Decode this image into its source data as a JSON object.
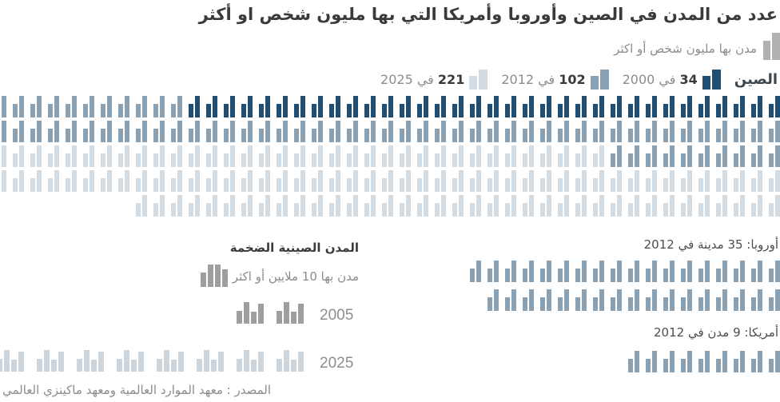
{
  "title": "عدد من المدن في الصين وأوروبا وأمريكا التي بها مليون شخص او أكثر",
  "legend_million": "مدن بها مليون شخص أو اكثر",
  "china": {
    "label": "الصين",
    "milestones": [
      {
        "count": "34",
        "year": "في 2000",
        "color": "dark"
      },
      {
        "count": "102",
        "year": "في 2012",
        "color": "medium"
      },
      {
        "count": "221",
        "year": "في 2025",
        "color": "light"
      }
    ],
    "grid": {
      "dark": 34,
      "medium": 68,
      "light": 119,
      "row_capacity": 46
    }
  },
  "europe": {
    "header": "أوروبا: 35 مدينة في 2012",
    "rows": [
      18,
      17
    ],
    "color": "medium"
  },
  "america": {
    "header": "أمريكا: 9 مدن في 2012",
    "rows": [
      9
    ],
    "color": "medium"
  },
  "mega": {
    "title": "المدن الصينية الضخمة",
    "legend": "مدن بها 10 ملايين أو اكثر",
    "rows": [
      {
        "year": "2005",
        "count": 2,
        "color": "mega_gray"
      },
      {
        "year": "2025",
        "count": 8,
        "color": "mega_light"
      }
    ]
  },
  "source": "المصدر : معهد الموارد العالمية ومعهد ماكينزي العالمي",
  "colors": {
    "dark": "#1f4e72",
    "medium": "#8aa1b3",
    "light": "#d4dce3",
    "mega_gray": "#9e9e9e",
    "mega_light": "#ccd5dc",
    "legend_gray": "#b1b1b1"
  },
  "chart_data": {
    "type": "bar",
    "subtype": "pictogram-unit-chart",
    "title": "عدد من المدن في الصين وأوروبا وأمريكا التي بها مليون شخص او أكثر",
    "unit": "1 building icon = 1 city",
    "legend_position": "top-right",
    "grid": false,
    "series": [
      {
        "name": "الصين — مدن بها مليون شخص أو اكثر",
        "categories": [
          "2000",
          "2012",
          "2025"
        ],
        "values": [
          34,
          102,
          221
        ]
      },
      {
        "name": "أوروبا — مدن بها مليون شخص أو اكثر",
        "categories": [
          "2012"
        ],
        "values": [
          35
        ]
      },
      {
        "name": "أمريكا — مدن بها مليون شخص أو اكثر",
        "categories": [
          "2012"
        ],
        "values": [
          9
        ]
      },
      {
        "name": "المدن الصينية الضخمة — مدن بها 10 ملايين أو اكثر",
        "categories": [
          "2005",
          "2025"
        ],
        "values": [
          2,
          8
        ]
      }
    ]
  }
}
